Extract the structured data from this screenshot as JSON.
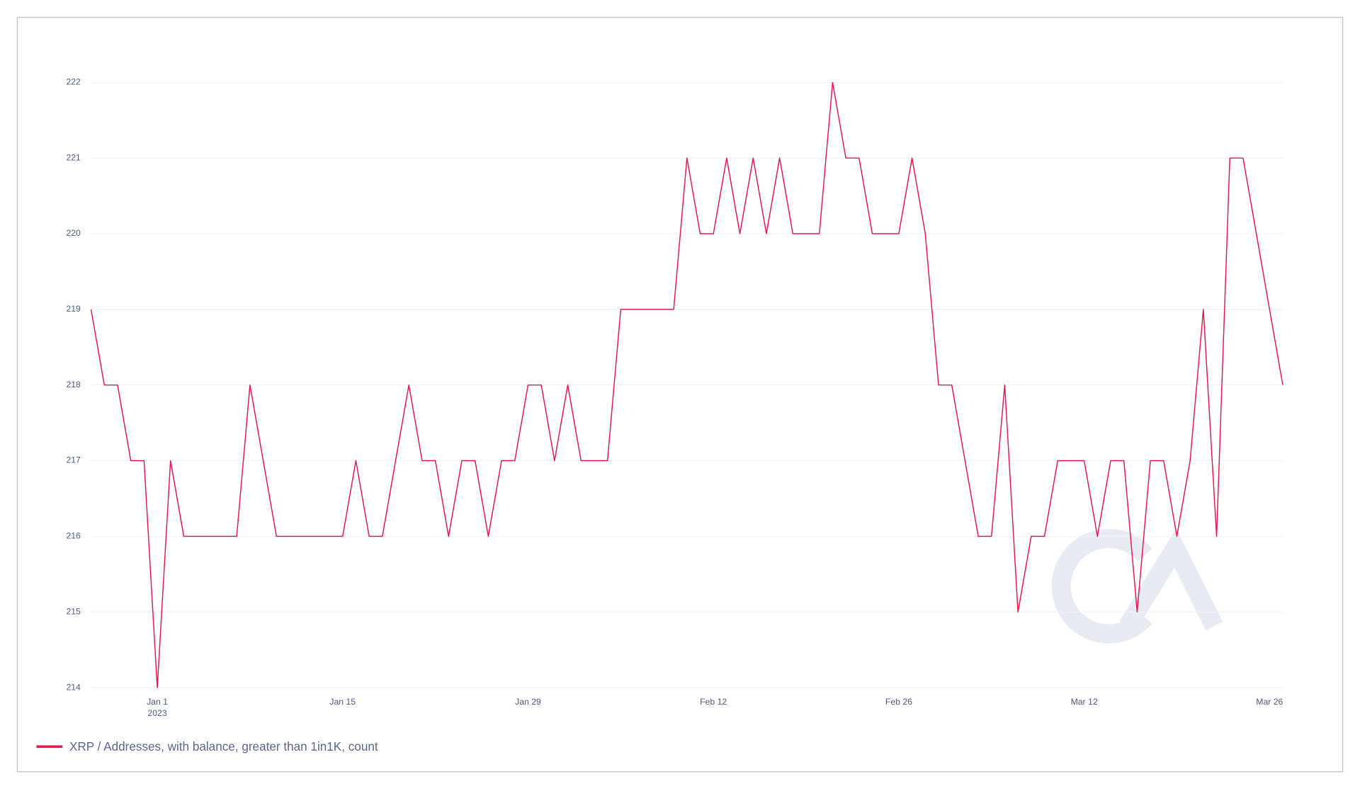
{
  "chart_data": {
    "type": "line",
    "categories": [
      null,
      null,
      null,
      null,
      null,
      "Jan 1",
      null,
      null,
      null,
      null,
      null,
      null,
      null,
      null,
      null,
      null,
      null,
      null,
      null,
      "Jan 15",
      null,
      null,
      null,
      null,
      null,
      null,
      null,
      null,
      null,
      null,
      null,
      null,
      null,
      "Jan 29",
      null,
      null,
      null,
      null,
      null,
      null,
      null,
      null,
      null,
      null,
      null,
      null,
      null,
      "Feb 12",
      null,
      null,
      null,
      null,
      null,
      null,
      null,
      null,
      null,
      null,
      null,
      null,
      null,
      "Feb 26",
      null,
      null,
      null,
      null,
      null,
      null,
      null,
      null,
      null,
      null,
      null,
      null,
      null,
      "Mar 12",
      null,
      null,
      null,
      null,
      null,
      null,
      null,
      null,
      null,
      null,
      null,
      null,
      null,
      "Mar 26",
      null
    ],
    "x_year_label": "2023",
    "series": [
      {
        "name": "XRP / Addresses, with balance, greater than 1in1K, count",
        "color": "#e3194d",
        "values": [
          219,
          218,
          218,
          217,
          217,
          214,
          217,
          216,
          216,
          216,
          216,
          216,
          218,
          217,
          216,
          216,
          216,
          216,
          216,
          216,
          217,
          216,
          216,
          217,
          218,
          217,
          217,
          216,
          217,
          217,
          216,
          217,
          217,
          218,
          218,
          217,
          218,
          217,
          217,
          217,
          219,
          219,
          219,
          219,
          219,
          221,
          220,
          220,
          221,
          220,
          221,
          220,
          221,
          220,
          220,
          220,
          222,
          221,
          221,
          220,
          220,
          220,
          221,
          220,
          218,
          218,
          217,
          216,
          216,
          218,
          215,
          216,
          216,
          217,
          217,
          217,
          216,
          217,
          217,
          215,
          217,
          217,
          216,
          217,
          219,
          216,
          221,
          221,
          220,
          219,
          218
        ]
      }
    ],
    "ylim": [
      214,
      222
    ],
    "yticks": [
      214,
      215,
      216,
      217,
      218,
      219,
      220,
      221,
      222
    ],
    "grid": true
  }
}
